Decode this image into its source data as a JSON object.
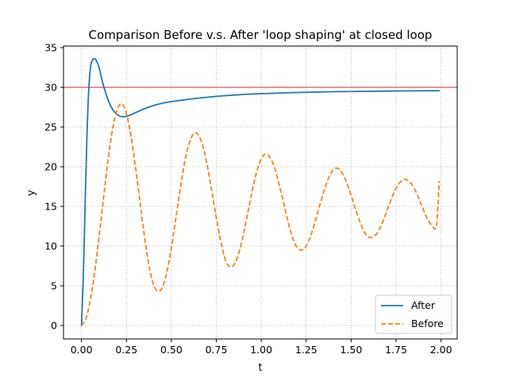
{
  "chart_data": {
    "type": "line",
    "title": "Comparison Before v.s. After 'loop shaping' at closed loop",
    "xlabel": "t",
    "ylabel": "y",
    "xlim": [
      -0.1,
      2.09
    ],
    "ylim": [
      -1.7,
      35.2
    ],
    "xticks": [
      "0.00",
      "0.25",
      "0.50",
      "0.75",
      "1.00",
      "1.25",
      "1.50",
      "1.75",
      "2.00"
    ],
    "yticks": [
      "0",
      "5",
      "10",
      "15",
      "20",
      "25",
      "30",
      "35"
    ],
    "grid": true,
    "legend_position": "lower-right",
    "reference_line": {
      "y": 30,
      "color": "#d62728"
    },
    "series": [
      {
        "name": "After",
        "color": "#1f77b4",
        "style": "solid",
        "x": [
          0.0,
          0.01,
          0.02,
          0.03,
          0.04,
          0.05,
          0.06,
          0.075,
          0.09,
          0.1,
          0.12,
          0.15,
          0.18,
          0.21,
          0.24,
          0.27,
          0.3,
          0.35,
          0.4,
          0.45,
          0.5,
          0.6,
          0.7,
          0.8,
          0.9,
          1.0,
          1.2,
          1.4,
          1.6,
          1.8,
          1.99
        ],
        "y": [
          0.0,
          6.0,
          15.0,
          23.5,
          29.5,
          32.5,
          33.4,
          33.6,
          33.0,
          32.3,
          30.4,
          28.3,
          27.0,
          26.4,
          26.3,
          26.5,
          26.8,
          27.3,
          27.7,
          28.0,
          28.2,
          28.5,
          28.75,
          28.95,
          29.1,
          29.2,
          29.35,
          29.45,
          29.5,
          29.55,
          29.57
        ]
      },
      {
        "name": "Before",
        "color": "#ff7f0e",
        "style": "dashed",
        "x": [
          0.0,
          0.025,
          0.05,
          0.075,
          0.1,
          0.125,
          0.15,
          0.175,
          0.2,
          0.225,
          0.25,
          0.275,
          0.3,
          0.325,
          0.35,
          0.375,
          0.4,
          0.425,
          0.45,
          0.475,
          0.5,
          0.525,
          0.55,
          0.575,
          0.6,
          0.625,
          0.65,
          0.675,
          0.7,
          0.725,
          0.75,
          0.775,
          0.8,
          0.825,
          0.85,
          0.875,
          0.9,
          0.925,
          0.95,
          0.975,
          1.0,
          1.025,
          1.05,
          1.075,
          1.1,
          1.125,
          1.15,
          1.175,
          1.2,
          1.225,
          1.25,
          1.275,
          1.3,
          1.325,
          1.35,
          1.375,
          1.4,
          1.425,
          1.45,
          1.475,
          1.5,
          1.525,
          1.55,
          1.575,
          1.6,
          1.625,
          1.65,
          1.675,
          1.7,
          1.725,
          1.75,
          1.775,
          1.8,
          1.825,
          1.85,
          1.875,
          1.9,
          1.925,
          1.95,
          1.975,
          1.99
        ],
        "y": [
          0.0,
          0.9,
          3.3,
          7.0,
          11.6,
          16.5,
          21.2,
          25.0,
          27.3,
          27.9,
          26.7,
          23.9,
          20.0,
          15.6,
          11.3,
          7.6,
          5.2,
          4.3,
          4.8,
          6.7,
          9.8,
          13.5,
          17.3,
          20.7,
          23.0,
          24.2,
          24.0,
          22.6,
          20.1,
          16.9,
          13.6,
          10.6,
          8.3,
          7.4,
          7.7,
          9.1,
          11.4,
          14.2,
          17.0,
          19.4,
          21.0,
          21.6,
          21.1,
          19.8,
          17.7,
          15.4,
          13.0,
          11.0,
          9.8,
          9.5,
          10.0,
          11.3,
          13.1,
          15.1,
          17.0,
          18.6,
          19.6,
          19.8,
          19.2,
          18.0,
          16.4,
          14.6,
          13.0,
          11.7,
          11.1,
          11.2,
          11.8,
          13.0,
          14.5,
          16.0,
          17.3,
          18.1,
          18.4,
          18.1,
          17.3,
          16.1,
          14.7,
          13.4,
          12.6,
          12.6,
          18.2
        ]
      }
    ]
  }
}
